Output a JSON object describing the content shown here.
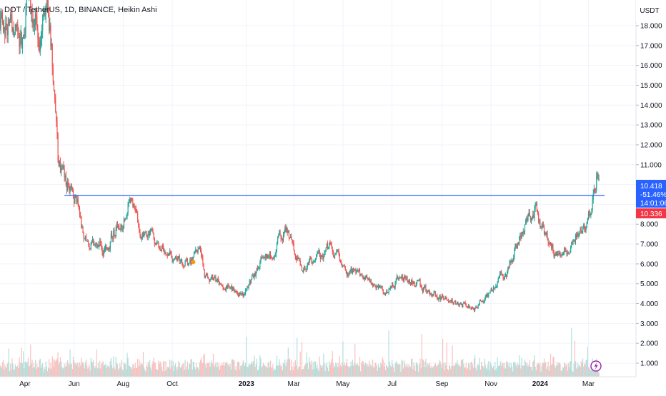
{
  "header": {
    "symbol_title": "DOT / TetherUS, 1D, BINANCE, Heikin Ashi",
    "currency": "USDT"
  },
  "price_tags": {
    "last_price": "10.418",
    "change_percent": "-51.46%",
    "countdown": "14:01:06",
    "line_price": "10.336",
    "last_tag_color": "#2962ff",
    "line_tag_color": "#f23645"
  },
  "icons": {
    "alert_icon": "lightning-icon"
  },
  "colors": {
    "up": "#26a69a",
    "down": "#ef5350",
    "up_volume": "#b2dfdb",
    "down_volume": "#f8c2c0",
    "hline": "#2962ff",
    "grid": "#f0f3fa",
    "marker": "#ff9800",
    "alert": "#9c27b0"
  },
  "chart_data": {
    "type": "candlestick",
    "style": "Heikin Ashi",
    "interval": "1D",
    "exchange": "BINANCE",
    "ylim": [
      0.7,
      19.6
    ],
    "y_ticks": [
      "1.000",
      "2.000",
      "3.000",
      "4.000",
      "5.000",
      "6.000",
      "7.000",
      "8.000",
      "9.000",
      "10.000",
      "11.000",
      "12.000",
      "13.000",
      "14.000",
      "15.000",
      "16.000",
      "17.000",
      "18.000"
    ],
    "x_ticks": [
      {
        "label": "Apr",
        "date": "2022-04-01"
      },
      {
        "label": "Jun",
        "date": "2022-06-01"
      },
      {
        "label": "Aug",
        "date": "2022-08-01"
      },
      {
        "label": "Oct",
        "date": "2022-10-01"
      },
      {
        "label": "2023",
        "date": "2023-01-01",
        "bold": true
      },
      {
        "label": "Mar",
        "date": "2023-03-01"
      },
      {
        "label": "May",
        "date": "2023-05-01"
      },
      {
        "label": "Jul",
        "date": "2023-07-01"
      },
      {
        "label": "Sep",
        "date": "2023-09-01"
      },
      {
        "label": "Nov",
        "date": "2023-11-01"
      },
      {
        "label": "2024",
        "date": "2024-01-01",
        "bold": true
      },
      {
        "label": "Mar",
        "date": "2024-03-01"
      }
    ],
    "x_range": [
      "2022-03-01",
      "2024-03-21"
    ],
    "price_path": [
      [
        "2022-03-01",
        18.5
      ],
      [
        "2022-03-15",
        18.0
      ],
      [
        "2022-03-28",
        16.8
      ],
      [
        "2022-04-04",
        20.0
      ],
      [
        "2022-04-10",
        18.8
      ],
      [
        "2022-04-20",
        17.8
      ],
      [
        "2022-04-28",
        19.5
      ],
      [
        "2022-05-02",
        18.2
      ],
      [
        "2022-05-08",
        14.5
      ],
      [
        "2022-05-12",
        11.0
      ],
      [
        "2022-05-16",
        10.6
      ],
      [
        "2022-05-25",
        10.0
      ],
      [
        "2022-06-05",
        9.2
      ],
      [
        "2022-06-13",
        7.2
      ],
      [
        "2022-06-20",
        7.1
      ],
      [
        "2022-07-01",
        7.0
      ],
      [
        "2022-07-10",
        6.8
      ],
      [
        "2022-07-20",
        7.6
      ],
      [
        "2022-08-05",
        8.4
      ],
      [
        "2022-08-12",
        9.5
      ],
      [
        "2022-08-20",
        7.7
      ],
      [
        "2022-09-01",
        7.3
      ],
      [
        "2022-09-15",
        7.1
      ],
      [
        "2022-09-25",
        6.4
      ],
      [
        "2022-10-15",
        6.2
      ],
      [
        "2022-10-24",
        6.1
      ],
      [
        "2022-11-05",
        6.9
      ],
      [
        "2022-11-10",
        5.6
      ],
      [
        "2022-11-25",
        5.2
      ],
      [
        "2022-12-10",
        5.0
      ],
      [
        "2022-12-30",
        4.3
      ],
      [
        "2023-01-20",
        6.1
      ],
      [
        "2023-02-05",
        6.7
      ],
      [
        "2023-02-18",
        7.7
      ],
      [
        "2023-03-05",
        6.5
      ],
      [
        "2023-03-12",
        5.6
      ],
      [
        "2023-03-20",
        6.2
      ],
      [
        "2023-04-05",
        6.3
      ],
      [
        "2023-04-18",
        7.0
      ],
      [
        "2023-05-01",
        5.9
      ],
      [
        "2023-05-15",
        5.4
      ],
      [
        "2023-06-10",
        4.9
      ],
      [
        "2023-06-22",
        4.6
      ],
      [
        "2023-07-12",
        5.5
      ],
      [
        "2023-07-28",
        5.2
      ],
      [
        "2023-08-17",
        4.4
      ],
      [
        "2023-09-10",
        4.1
      ],
      [
        "2023-10-01",
        3.9
      ],
      [
        "2023-10-12",
        3.7
      ],
      [
        "2023-10-25",
        4.4
      ],
      [
        "2023-11-05",
        4.9
      ],
      [
        "2023-11-20",
        5.4
      ],
      [
        "2023-12-01",
        6.8
      ],
      [
        "2023-12-12",
        8.0
      ],
      [
        "2023-12-26",
        8.9
      ],
      [
        "2024-01-05",
        7.6
      ],
      [
        "2024-01-15",
        6.9
      ],
      [
        "2024-01-23",
        6.2
      ],
      [
        "2024-02-05",
        7.0
      ],
      [
        "2024-02-18",
        7.8
      ],
      [
        "2024-02-29",
        8.3
      ],
      [
        "2024-03-07",
        9.3
      ],
      [
        "2024-03-12",
        10.7
      ],
      [
        "2024-03-14",
        10.4
      ]
    ],
    "horizontal_line": {
      "price": 9.45,
      "from": "2022-05-20",
      "to": "2024-03-21"
    },
    "marker": {
      "date": "2022-10-27",
      "price": 6.1
    }
  }
}
